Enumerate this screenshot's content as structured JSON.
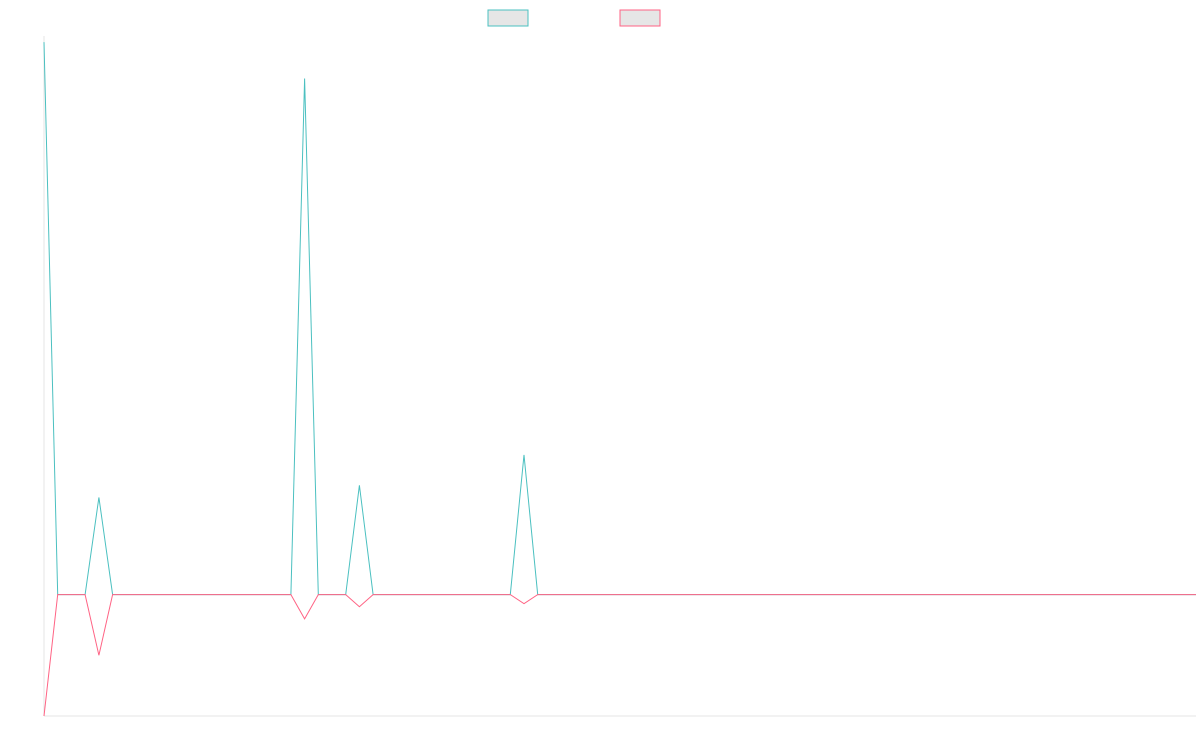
{
  "chart_data": {
    "type": "line",
    "title": "",
    "xlabel": "",
    "ylabel": "",
    "x": [
      0,
      1,
      2,
      3,
      4,
      5,
      6,
      7,
      8,
      9,
      10,
      11,
      12,
      13,
      14,
      15,
      16,
      17,
      18,
      19,
      20,
      21,
      22,
      23,
      24,
      25,
      26,
      27,
      28,
      29,
      30,
      31,
      32,
      33,
      34,
      35,
      36,
      37,
      38,
      39,
      40,
      41,
      42,
      43,
      44,
      45,
      46,
      47,
      48,
      49,
      50,
      51,
      52,
      53,
      54,
      55,
      56,
      57,
      58,
      59,
      60,
      61,
      62,
      63,
      64,
      65,
      66,
      67,
      68,
      69,
      70,
      71,
      72,
      73,
      74,
      75,
      76,
      77,
      78,
      79,
      80,
      81,
      82,
      83,
      84
    ],
    "ylim": [
      -20,
      92
    ],
    "series": [
      {
        "name": "",
        "color": "#4bc0c0",
        "values": [
          91,
          0,
          0,
          0,
          16,
          0,
          0,
          0,
          0,
          0,
          0,
          0,
          0,
          0,
          0,
          0,
          0,
          0,
          0,
          85,
          0,
          0,
          0,
          18,
          0,
          0,
          0,
          0,
          0,
          0,
          0,
          0,
          0,
          0,
          0,
          23,
          0,
          0,
          0,
          0,
          0,
          0,
          0,
          0,
          0,
          0,
          0,
          0,
          0,
          0,
          0,
          0,
          0,
          0,
          0,
          0,
          0,
          0,
          0,
          0,
          0,
          0,
          0,
          0,
          0,
          0,
          0,
          0,
          0,
          0,
          0,
          0,
          0,
          0,
          0,
          0,
          0,
          0,
          0,
          0,
          0,
          0,
          0,
          0,
          0
        ]
      },
      {
        "name": "",
        "color": "#ff6384",
        "values": [
          -20,
          0,
          0,
          0,
          -10,
          0,
          0,
          0,
          0,
          0,
          0,
          0,
          0,
          0,
          0,
          0,
          0,
          0,
          0,
          -4,
          0,
          0,
          0,
          -2,
          0,
          0,
          0,
          0,
          0,
          0,
          0,
          0,
          0,
          0,
          0,
          -1.5,
          0,
          0,
          0,
          0,
          0,
          0,
          0,
          0,
          0,
          0,
          0,
          0,
          0,
          0,
          0,
          0,
          0,
          0,
          0,
          0,
          0,
          0,
          0,
          0,
          0,
          0,
          0,
          0,
          0,
          0,
          0,
          0,
          0,
          0,
          0,
          0,
          0,
          0,
          0,
          0,
          0,
          0,
          0,
          0,
          0,
          0,
          0,
          0,
          0
        ]
      }
    ],
    "legend": "top-center",
    "grid": false
  }
}
